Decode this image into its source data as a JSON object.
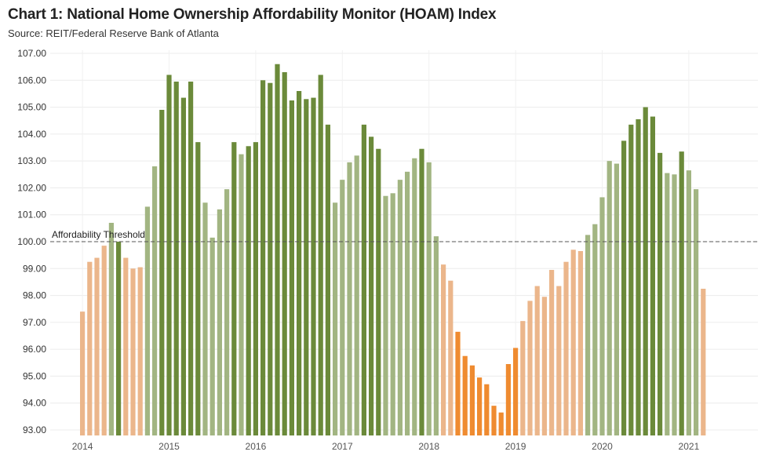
{
  "header": {
    "title": "Chart 1: National Home Ownership Affordability Monitor (HOAM) Index",
    "source": "Source: REIT/Federal Reserve Bank of Atlanta"
  },
  "chart_data": {
    "type": "bar",
    "title": "Chart 1: National Home Ownership Affordability Monitor (HOAM) Index",
    "subtitle": "Source: REIT/Federal Reserve Bank of Atlanta",
    "xlabel": "",
    "ylabel": "",
    "ylim": [
      93,
      107
    ],
    "y_ticks": [
      "93.00",
      "94.00",
      "95.00",
      "96.00",
      "97.00",
      "98.00",
      "99.00",
      "100.00",
      "101.00",
      "102.00",
      "103.00",
      "104.00",
      "105.00",
      "106.00",
      "107.00"
    ],
    "x_ticks": [
      "2014",
      "2015",
      "2016",
      "2017",
      "2018",
      "2019",
      "2020",
      "2021"
    ],
    "grid": true,
    "threshold": {
      "value": 100,
      "label": "Affordability Threshold"
    },
    "colors": {
      "below_light": "#ebb68b",
      "below_dark": "#ef8b30",
      "above_light": "#a2b582",
      "above_dark": "#6b8a3a"
    },
    "series": [
      {
        "start": "2014-01",
        "frequency": "monthly",
        "values": [
          97.4,
          99.25,
          99.4,
          99.85,
          100.7,
          100.0,
          99.4,
          99.0,
          99.05,
          101.3,
          102.8,
          104.9,
          106.2,
          105.95,
          105.35,
          105.95,
          103.7,
          101.45,
          100.15,
          101.2,
          101.95,
          103.7,
          103.25,
          103.55,
          103.7,
          106.0,
          105.9,
          106.6,
          106.3,
          105.25,
          105.6,
          105.3,
          105.35,
          106.2,
          104.35,
          101.45,
          102.3,
          102.95,
          103.2,
          104.35,
          103.9,
          103.45,
          101.7,
          101.8,
          102.3,
          102.6,
          103.1,
          103.45,
          102.95,
          100.2,
          99.15,
          98.55,
          96.65,
          95.75,
          95.4,
          94.95,
          94.7,
          93.9,
          93.65,
          95.45,
          96.05,
          97.05,
          97.8,
          98.35,
          97.95,
          98.95,
          98.35,
          99.25,
          99.7,
          99.65,
          100.25,
          100.65,
          101.65,
          103.0,
          102.9,
          103.75,
          104.35,
          104.55,
          105.0,
          104.65,
          103.3,
          102.55,
          102.5,
          103.35,
          102.65,
          101.95,
          98.25
        ],
        "shades": [
          "light",
          "light",
          "light",
          "light",
          "light",
          "dark",
          "light",
          "light",
          "light",
          "light",
          "light",
          "dark",
          "dark",
          "dark",
          "dark",
          "dark",
          "dark",
          "light",
          "light",
          "light",
          "light",
          "dark",
          "light",
          "dark",
          "dark",
          "dark",
          "dark",
          "dark",
          "dark",
          "dark",
          "dark",
          "dark",
          "dark",
          "dark",
          "dark",
          "light",
          "light",
          "light",
          "light",
          "dark",
          "dark",
          "dark",
          "light",
          "light",
          "light",
          "light",
          "light",
          "dark",
          "light",
          "light",
          "light",
          "light",
          "dark",
          "dark",
          "dark",
          "dark",
          "dark",
          "dark",
          "dark",
          "dark",
          "dark",
          "light",
          "light",
          "light",
          "light",
          "light",
          "light",
          "light",
          "light",
          "light",
          "light",
          "light",
          "light",
          "light",
          "light",
          "dark",
          "dark",
          "dark",
          "dark",
          "dark",
          "dark",
          "light",
          "light",
          "dark",
          "light",
          "light",
          "light"
        ]
      }
    ]
  }
}
